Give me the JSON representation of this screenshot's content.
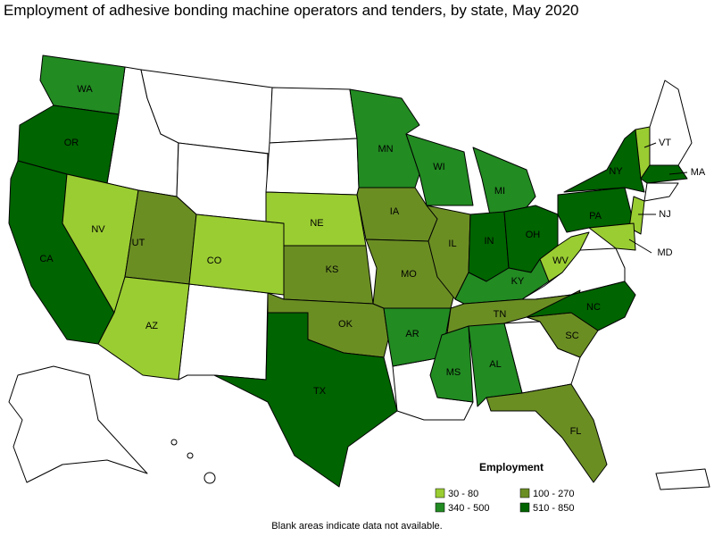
{
  "title": "Employment of adhesive bonding machine operators and tenders, by state, May 2020",
  "legend": {
    "title": "Employment",
    "items": [
      {
        "label": "30 - 80",
        "color": "#9acd32"
      },
      {
        "label": "100 - 270",
        "color": "#6b8e23"
      },
      {
        "label": "340 - 500",
        "color": "#228b22"
      },
      {
        "label": "510 - 850",
        "color": "#006400"
      }
    ]
  },
  "states": [
    {
      "label": "WA",
      "legend_item": 2
    },
    {
      "label": "OR",
      "legend_item": 3
    },
    {
      "label": "CA",
      "legend_item": 3
    },
    {
      "label": "NV",
      "legend_item": 0
    },
    {
      "label": "UT",
      "legend_item": 1
    },
    {
      "label": "AZ",
      "legend_item": 0
    },
    {
      "label": "CO",
      "legend_item": 0
    },
    {
      "label": "NE",
      "legend_item": 0
    },
    {
      "label": "KS",
      "legend_item": 1
    },
    {
      "label": "OK",
      "legend_item": 1
    },
    {
      "label": "TX",
      "legend_item": 3
    },
    {
      "label": "MN",
      "legend_item": 2
    },
    {
      "label": "IA",
      "legend_item": 1
    },
    {
      "label": "MO",
      "legend_item": 1
    },
    {
      "label": "AR",
      "legend_item": 2
    },
    {
      "label": "WI",
      "legend_item": 2
    },
    {
      "label": "IL",
      "legend_item": 1
    },
    {
      "label": "MI",
      "legend_item": 2
    },
    {
      "label": "IN",
      "legend_item": 3
    },
    {
      "label": "OH",
      "legend_item": 3
    },
    {
      "label": "KY",
      "legend_item": 2
    },
    {
      "label": "TN",
      "legend_item": 1
    },
    {
      "label": "MS",
      "legend_item": 2
    },
    {
      "label": "AL",
      "legend_item": 2
    },
    {
      "label": "FL",
      "legend_item": 1
    },
    {
      "label": "SC",
      "legend_item": 1
    },
    {
      "label": "NC",
      "legend_item": 3
    },
    {
      "label": "WV",
      "legend_item": 0
    },
    {
      "label": "PA",
      "legend_item": 3
    },
    {
      "label": "NY",
      "legend_item": 3
    },
    {
      "label": "VT",
      "legend_item": 0
    },
    {
      "label": "MA",
      "legend_item": 3
    },
    {
      "label": "NJ",
      "legend_item": 0
    },
    {
      "label": "MD",
      "legend_item": 0
    }
  ],
  "footnote": "Blank areas indicate data not available."
}
